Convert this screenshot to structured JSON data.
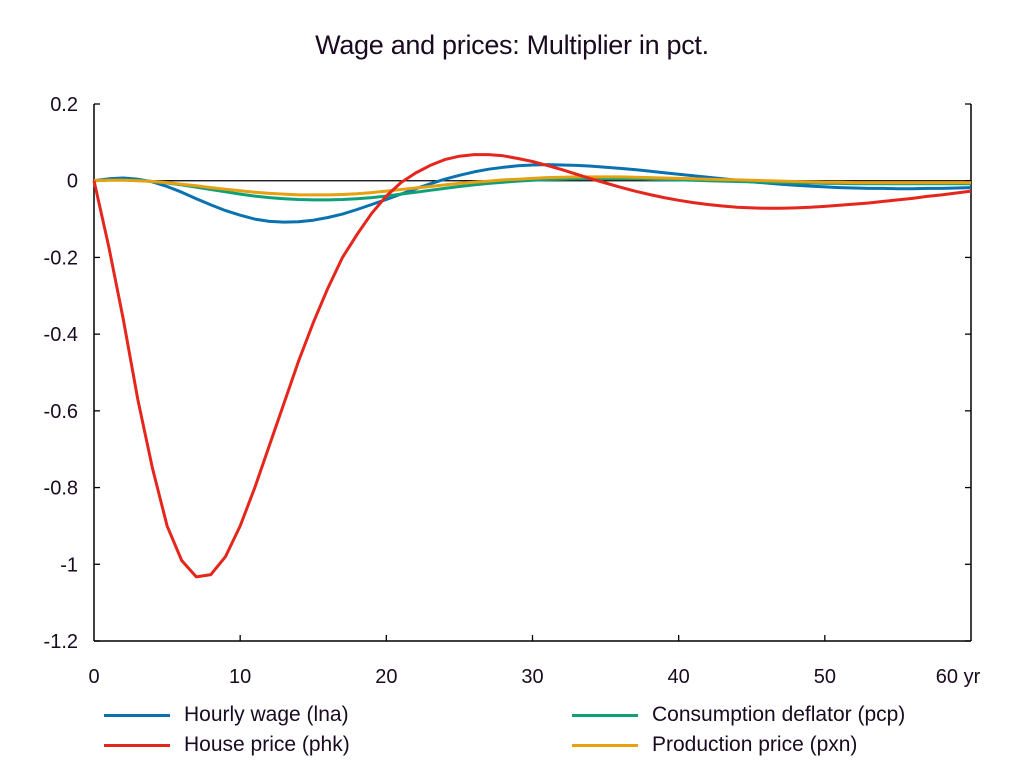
{
  "chart_data": {
    "type": "line",
    "title": "Wage and prices: Multiplier in pct.",
    "xlabel": "",
    "ylabel": "",
    "x_unit_label": "yr",
    "xlim": [
      0,
      60
    ],
    "ylim": [
      -1.2,
      0.2
    ],
    "x_ticks": [
      0,
      10,
      20,
      30,
      40,
      50,
      60
    ],
    "x_tick_labels": [
      "0",
      "10",
      "20",
      "30",
      "40",
      "50",
      "60 yr"
    ],
    "y_ticks": [
      0.2,
      0,
      -0.2,
      -0.4,
      -0.6,
      -0.8,
      -1,
      -1.2
    ],
    "y_tick_labels": [
      "0.2",
      "0",
      "-0.2",
      "-0.4",
      "-0.6",
      "-0.8",
      "-1",
      "-1.2"
    ],
    "grid": false,
    "zero_line": true,
    "legend_position": "bottom",
    "x": [
      0,
      1,
      2,
      3,
      4,
      5,
      6,
      7,
      8,
      9,
      10,
      11,
      12,
      13,
      14,
      15,
      16,
      17,
      18,
      19,
      20,
      21,
      22,
      23,
      24,
      25,
      26,
      27,
      28,
      29,
      30,
      31,
      32,
      33,
      34,
      35,
      36,
      37,
      38,
      39,
      40,
      41,
      42,
      43,
      44,
      45,
      46,
      47,
      48,
      49,
      50,
      51,
      52,
      53,
      54,
      55,
      56,
      57,
      58,
      59,
      60
    ],
    "series": [
      {
        "name": "Hourly wage (lna)",
        "color": "#0a72b0",
        "values": [
          0,
          0.005,
          0.007,
          0.004,
          -0.003,
          -0.015,
          -0.03,
          -0.047,
          -0.063,
          -0.078,
          -0.09,
          -0.1,
          -0.106,
          -0.108,
          -0.107,
          -0.103,
          -0.096,
          -0.087,
          -0.075,
          -0.062,
          -0.049,
          -0.035,
          -0.021,
          -0.008,
          0.004,
          0.014,
          0.023,
          0.03,
          0.035,
          0.039,
          0.041,
          0.042,
          0.041,
          0.04,
          0.038,
          0.035,
          0.032,
          0.029,
          0.025,
          0.021,
          0.017,
          0.013,
          0.009,
          0.005,
          0.001,
          -0.003,
          -0.006,
          -0.009,
          -0.012,
          -0.014,
          -0.016,
          -0.018,
          -0.019,
          -0.02,
          -0.02,
          -0.021,
          -0.021,
          -0.02,
          -0.02,
          -0.019,
          -0.018
        ]
      },
      {
        "name": "House price (phk)",
        "color": "#e5261c",
        "values": [
          0,
          -0.17,
          -0.36,
          -0.57,
          -0.75,
          -0.9,
          -0.99,
          -1.033,
          -1.027,
          -0.98,
          -0.9,
          -0.8,
          -0.69,
          -0.58,
          -0.47,
          -0.37,
          -0.28,
          -0.2,
          -0.14,
          -0.085,
          -0.04,
          -0.005,
          0.02,
          0.04,
          0.055,
          0.064,
          0.068,
          0.068,
          0.065,
          0.058,
          0.05,
          0.04,
          0.029,
          0.017,
          0.005,
          -0.006,
          -0.017,
          -0.027,
          -0.036,
          -0.044,
          -0.051,
          -0.057,
          -0.062,
          -0.066,
          -0.069,
          -0.071,
          -0.072,
          -0.072,
          -0.071,
          -0.069,
          -0.067,
          -0.064,
          -0.061,
          -0.058,
          -0.054,
          -0.05,
          -0.046,
          -0.041,
          -0.037,
          -0.032,
          -0.027
        ]
      },
      {
        "name": "Consumption deflator (pcp)",
        "color": "#0fa07a",
        "values": [
          0,
          0.002,
          0.002,
          0.001,
          -0.002,
          -0.006,
          -0.011,
          -0.017,
          -0.023,
          -0.029,
          -0.035,
          -0.04,
          -0.044,
          -0.047,
          -0.049,
          -0.05,
          -0.05,
          -0.049,
          -0.047,
          -0.044,
          -0.04,
          -0.035,
          -0.03,
          -0.025,
          -0.02,
          -0.015,
          -0.011,
          -0.007,
          -0.004,
          -0.001,
          0.001,
          0.003,
          0.004,
          0.005,
          0.005,
          0.005,
          0.005,
          0.005,
          0.004,
          0.003,
          0.002,
          0.001,
          0,
          -0.001,
          -0.002,
          -0.003,
          -0.004,
          -0.005,
          -0.006,
          -0.006,
          -0.007,
          -0.007,
          -0.008,
          -0.008,
          -0.008,
          -0.008,
          -0.008,
          -0.008,
          -0.008,
          -0.008,
          -0.008
        ]
      },
      {
        "name": "Production price (pxn)",
        "color": "#e6a010",
        "values": [
          0,
          0.001,
          0.001,
          0,
          -0.002,
          -0.005,
          -0.009,
          -0.013,
          -0.018,
          -0.022,
          -0.026,
          -0.03,
          -0.033,
          -0.035,
          -0.037,
          -0.037,
          -0.037,
          -0.036,
          -0.034,
          -0.031,
          -0.027,
          -0.023,
          -0.019,
          -0.015,
          -0.011,
          -0.007,
          -0.004,
          -0.001,
          0.002,
          0.004,
          0.006,
          0.008,
          0.009,
          0.01,
          0.01,
          0.01,
          0.01,
          0.009,
          0.008,
          0.007,
          0.006,
          0.005,
          0.004,
          0.003,
          0.002,
          0.001,
          0,
          -0.001,
          -0.002,
          -0.003,
          -0.004,
          -0.004,
          -0.005,
          -0.005,
          -0.005,
          -0.005,
          -0.005,
          -0.005,
          -0.005,
          -0.005,
          -0.005
        ]
      }
    ]
  }
}
